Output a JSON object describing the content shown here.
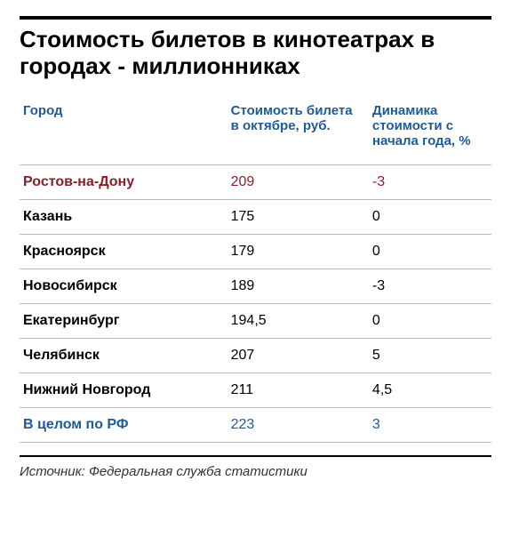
{
  "title": "Стоимость билетов в кинотеатрах в городах - миллионниках",
  "table": {
    "type": "table",
    "columns": [
      {
        "label": "Город",
        "width_pct": 44,
        "align": "left"
      },
      {
        "label": "Стоимость билета в октябре, руб.",
        "width_pct": 30,
        "align": "left"
      },
      {
        "label": "Динамика стоимости с начала года, %",
        "width_pct": 26,
        "align": "left"
      }
    ],
    "header_color": "#1f5a9a",
    "highlight_color": "#8a1d2b",
    "summary_color": "#1f5a9a",
    "text_color": "#000000",
    "border_color": "#b8b8b8",
    "background_color": "#ffffff",
    "rows": [
      {
        "city": "Ростов-на-Дону",
        "price": "209",
        "dyn": "-3",
        "style": "highlight"
      },
      {
        "city": "Казань",
        "price": "175",
        "dyn": "0",
        "style": "normal"
      },
      {
        "city": "Красноярск",
        "price": "179",
        "dyn": "0",
        "style": "normal"
      },
      {
        "city": "Новосибирск",
        "price": "189",
        "dyn": "-3",
        "style": "normal"
      },
      {
        "city": "Екатеринбург",
        "price": "194,5",
        "dyn": "0",
        "style": "normal"
      },
      {
        "city": "Челябинск",
        "price": "207",
        "dyn": "5",
        "style": "normal"
      },
      {
        "city": "Нижний Новгород",
        "price": "211",
        "dyn": "4,5",
        "style": "normal"
      },
      {
        "city": "В целом по РФ",
        "price": "223",
        "dyn": "3",
        "style": "summary"
      }
    ],
    "title_fontsize": 26,
    "header_fontsize": 15,
    "cell_fontsize": 16
  },
  "source": "Источник: Федеральная служба статистики"
}
